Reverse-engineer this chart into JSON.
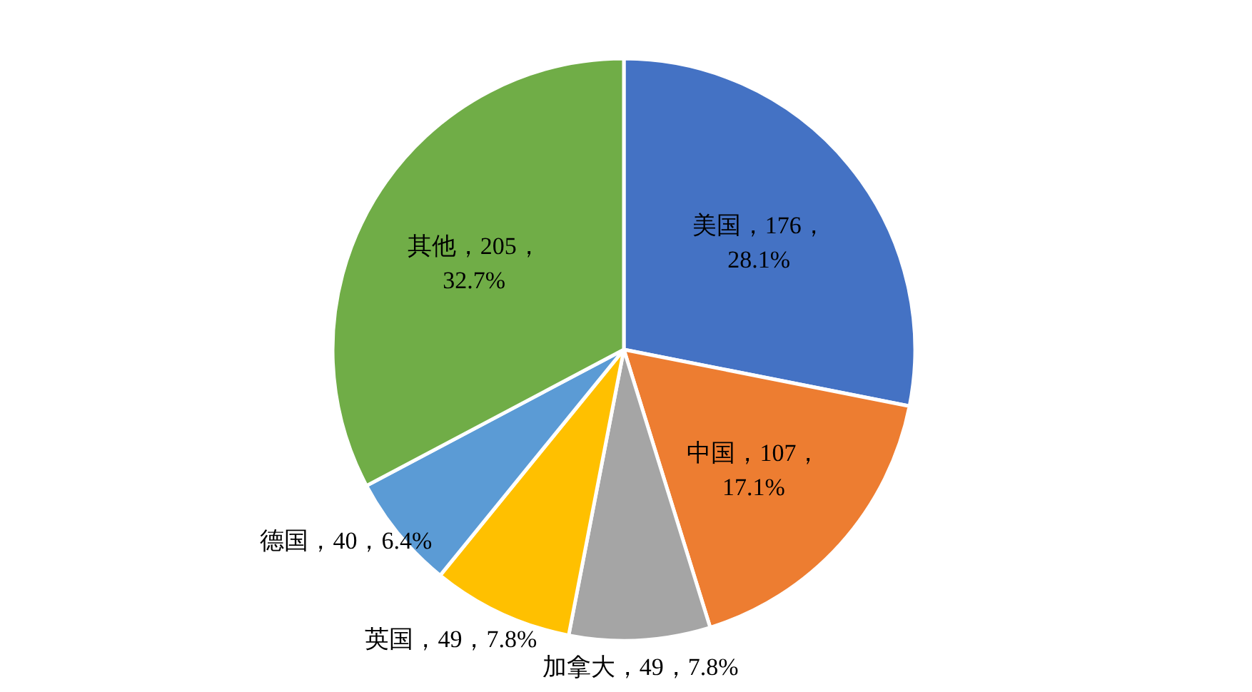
{
  "chart_data": {
    "type": "pie",
    "categories": [
      "美国",
      "中国",
      "加拿大",
      "英国",
      "德国",
      "其他"
    ],
    "values": [
      176,
      107,
      49,
      49,
      40,
      205
    ],
    "colors": [
      "#4472c4",
      "#ed7d31",
      "#a5a5a5",
      "#ffc000",
      "#5b9bd5",
      "#70ad47"
    ],
    "value_labels": [
      "176，28.1%",
      "107，17.1%",
      "49，7.8%",
      "49，7.8%",
      "40，6.4%",
      "205，32.7%"
    ]
  }
}
